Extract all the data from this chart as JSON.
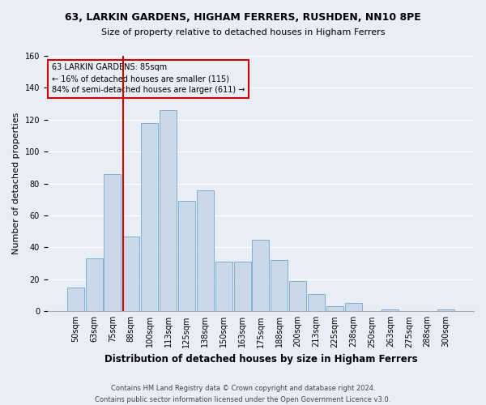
{
  "title1": "63, LARKIN GARDENS, HIGHAM FERRERS, RUSHDEN, NN10 8PE",
  "title2": "Size of property relative to detached houses in Higham Ferrers",
  "xlabel": "Distribution of detached houses by size in Higham Ferrers",
  "ylabel": "Number of detached properties",
  "footnote1": "Contains HM Land Registry data © Crown copyright and database right 2024.",
  "footnote2": "Contains public sector information licensed under the Open Government Licence v3.0.",
  "bar_labels": [
    "50sqm",
    "63sqm",
    "75sqm",
    "88sqm",
    "100sqm",
    "113sqm",
    "125sqm",
    "138sqm",
    "150sqm",
    "163sqm",
    "175sqm",
    "188sqm",
    "200sqm",
    "213sqm",
    "225sqm",
    "238sqm",
    "250sqm",
    "263sqm",
    "275sqm",
    "288sqm",
    "300sqm"
  ],
  "bar_values": [
    15,
    33,
    86,
    47,
    118,
    126,
    69,
    76,
    31,
    31,
    45,
    32,
    19,
    11,
    3,
    5,
    0,
    1,
    0,
    0,
    1
  ],
  "bar_color": "#c9d9e8",
  "bar_edge_color": "#7bafd4",
  "annotation_text": "63 LARKIN GARDENS: 85sqm\n← 16% of detached houses are smaller (115)\n84% of semi-detached houses are larger (611) →",
  "vline_x_idx": 2.575,
  "box_color": "#cc0000",
  "ylim": [
    0,
    160
  ],
  "yticks": [
    0,
    20,
    40,
    60,
    80,
    100,
    120,
    140,
    160
  ],
  "background_color": "#e8eef4",
  "grid_color": "#ffffff",
  "title1_fontsize": 9.0,
  "title2_fontsize": 8.0,
  "ylabel_fontsize": 8.0,
  "xlabel_fontsize": 8.5,
  "tick_fontsize": 7.0,
  "footnote_fontsize": 6.0
}
